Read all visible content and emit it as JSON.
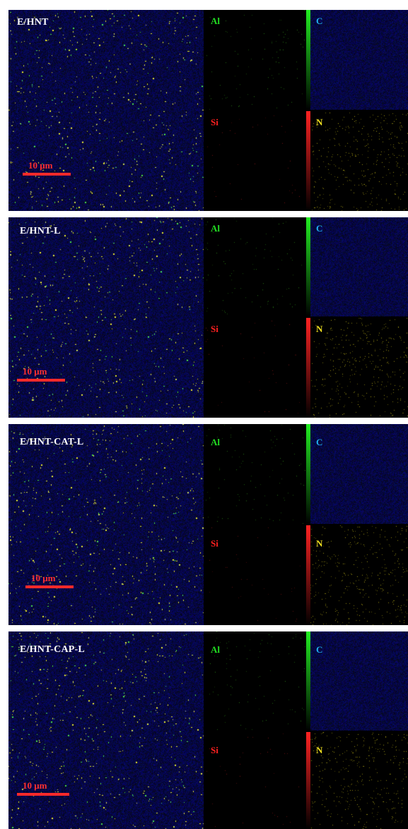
{
  "colors": {
    "background": "#ffffff",
    "scale_bar": "#ff2a2a",
    "Al": "#22dd22",
    "C": "#20b0ee",
    "Si": "#ff2020",
    "N": "#f0e020",
    "map_base": "#0a0a3c"
  },
  "panels": [
    {
      "sample_label": "E/HNT",
      "scale_label": "10 μm",
      "elements": {
        "al": "Al",
        "c": "C",
        "si": "Si",
        "n": "N"
      }
    },
    {
      "sample_label": "E/HNT-L",
      "scale_label": "10 μm",
      "elements": {
        "al": "Al",
        "c": "C",
        "si": "Si",
        "n": "N"
      }
    },
    {
      "sample_label": "E/HNT-CAT-L",
      "scale_label": "10 μm",
      "elements": {
        "al": "Al",
        "c": "C",
        "si": "Si",
        "n": "N"
      }
    },
    {
      "sample_label": "E/HNT-CAP-L",
      "scale_label": "10 μm",
      "elements": {
        "al": "Al",
        "c": "C",
        "si": "Si",
        "n": "N"
      }
    }
  ]
}
